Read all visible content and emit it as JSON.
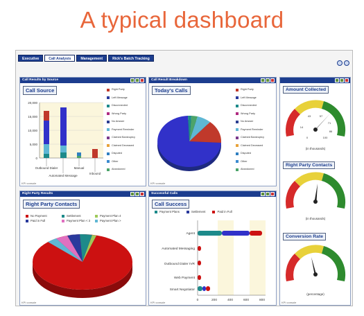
{
  "slide_title": "A typical dashboard",
  "tabs": [
    {
      "label": "Executive",
      "active": false
    },
    {
      "label": "Call Analysis",
      "active": true
    },
    {
      "label": "Management",
      "active": false
    },
    {
      "label": "Rick's Batch Tracking",
      "active": false
    }
  ],
  "footer_label": "KPI console",
  "call_results": {
    "header": "Call Results by Source",
    "subtitle": "Call Source",
    "y_ticks": [
      "20,000",
      "15,000",
      "10,000",
      "5,000",
      "0"
    ],
    "categories": [
      "Outbound Dialer",
      "Automated Message",
      "Manual",
      "Inbound"
    ],
    "legend": [
      {
        "label": "Right Party",
        "color": "#c0392b"
      },
      {
        "label": "Left Message",
        "color": "#2a3a9c"
      },
      {
        "label": "Disconnected",
        "color": "#1d8a8a"
      },
      {
        "label": "Wrong Party",
        "color": "#b02a80"
      },
      {
        "label": "No Answer",
        "color": "#2c3e91"
      },
      {
        "label": "Payment Reminder",
        "color": "#5fb7d4"
      },
      {
        "label": "Claimed Bankruptcy",
        "color": "#7a3a8c"
      },
      {
        "label": "Claimed Deceased",
        "color": "#e8a33a"
      },
      {
        "label": "Disputed",
        "color": "#2f7fc0"
      },
      {
        "label": "Other",
        "color": "#3a8ad0"
      },
      {
        "label": "Abandoned",
        "color": "#4ca46a"
      }
    ]
  },
  "call_breakdown": {
    "header": "Call Result Breakdown",
    "subtitle": "Today's Calls",
    "legend": [
      {
        "label": "Right Party",
        "color": "#c0392b"
      },
      {
        "label": "Left Message",
        "color": "#2a3a9c"
      },
      {
        "label": "Disconnected",
        "color": "#1d8a8a"
      },
      {
        "label": "Wrong Party",
        "color": "#b02a80"
      },
      {
        "label": "No Answer",
        "color": "#2c3e91"
      },
      {
        "label": "Payment Reminder",
        "color": "#5fb7d4"
      },
      {
        "label": "Claimed Bankruptcy",
        "color": "#7a3a8c"
      },
      {
        "label": "Claimed Deceased",
        "color": "#e8a33a"
      },
      {
        "label": "Disputed",
        "color": "#2f7fc0"
      },
      {
        "label": "Other",
        "color": "#3a8ad0"
      },
      {
        "label": "Abandoned",
        "color": "#4ca46a"
      }
    ]
  },
  "gauges": [
    {
      "subtitle": "Amount Collected",
      "ticks": [
        "14",
        "43",
        "57",
        "71",
        "86",
        "0",
        "100"
      ],
      "unit": "(in thousands)",
      "value": 0.62
    },
    {
      "subtitle": "Right Party Contacts",
      "ticks": [],
      "unit": "(in thousands)",
      "value": 0.52
    },
    {
      "subtitle": "Conversion Rate",
      "ticks": [],
      "unit": "(percentage)",
      "value": 0.45
    }
  ],
  "right_party": {
    "header": "Right Party Results",
    "subtitle": "Right Party Contacts",
    "legend": [
      {
        "label": "No Payment",
        "color": "#cc1111"
      },
      {
        "label": "Settlement",
        "color": "#1d8a8a"
      },
      {
        "label": "Payment Plan 4",
        "color": "#9ec95a"
      },
      {
        "label": "Paid in Full",
        "color": "#2a3a9c"
      },
      {
        "label": "Payment Plan < 3",
        "color": "#e070c0"
      },
      {
        "label": "Payment Plan >",
        "color": "#5fb7d4"
      }
    ]
  },
  "call_success": {
    "header": "Successful Calls",
    "subtitle": "Call Success",
    "legend": [
      {
        "label": "Payment Plans",
        "color": "#1d8a8a"
      },
      {
        "label": "Settlement",
        "color": "#2a3a9c"
      },
      {
        "label": "Paid in Full",
        "color": "#cc1111"
      }
    ],
    "categories": [
      "Agent",
      "Automated Messaging",
      "Outbound Dialer IVR",
      "Web Payment",
      "Smart Negotiator"
    ],
    "x_ticks": [
      "0",
      "200",
      "400",
      "600",
      "800"
    ]
  }
}
